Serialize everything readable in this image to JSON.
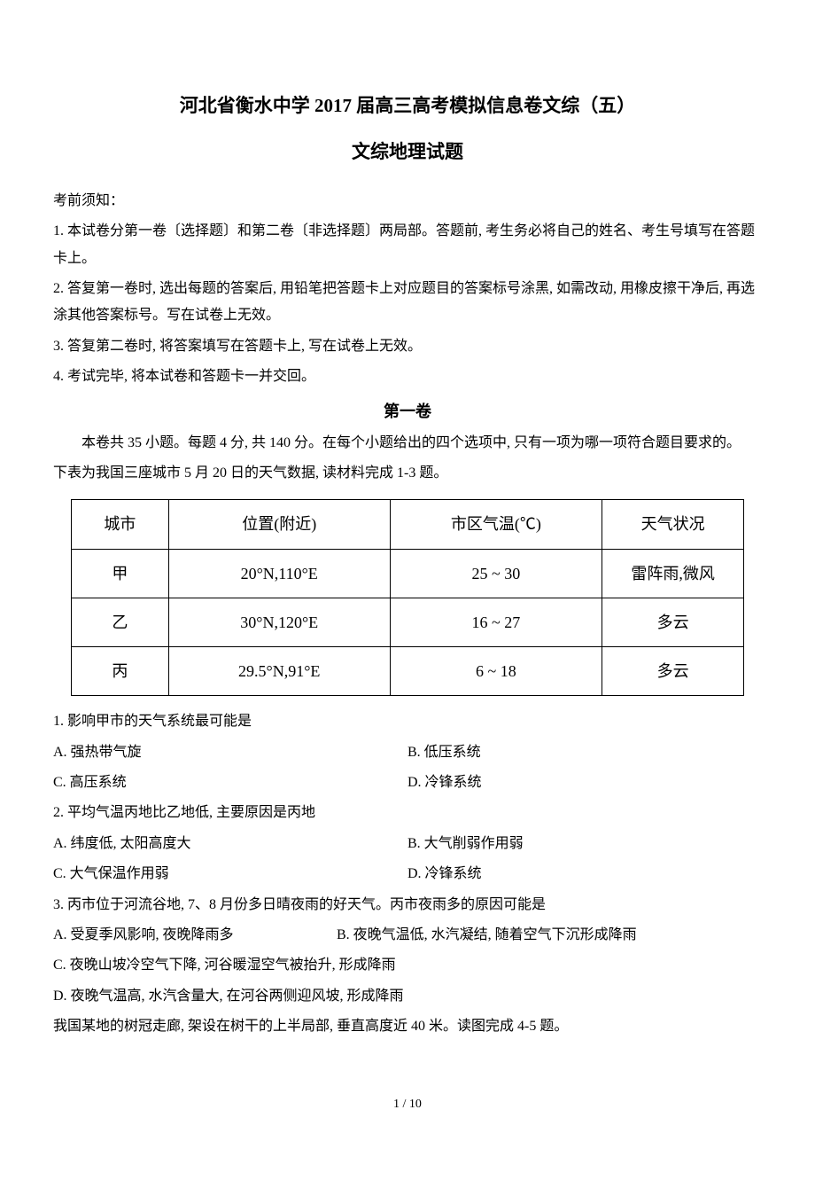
{
  "header": {
    "title_main": "河北省衡水中学 2017 届高三高考模拟信息卷文综（五）",
    "title_sub": "文综地理试题"
  },
  "instructions": {
    "pre_label": "考前须知：",
    "item1": "1. 本试卷分第一卷〔选择题〕和第二卷〔非选择题〕两局部。答题前, 考生务必将自己的姓名、考生号填写在答题卡上。",
    "item2": "2. 答复第一卷时, 选出每题的答案后, 用铅笔把答题卡上对应题目的答案标号涂黑, 如需改动, 用橡皮擦干净后, 再选涂其他答案标号。写在试卷上无效。",
    "item3": "3. 答复第二卷时, 将答案填写在答题卡上, 写在试卷上无效。",
    "item4": "4. 考试完毕, 将本试卷和答题卡一并交回。"
  },
  "section1": {
    "heading": "第一卷",
    "intro": "本卷共 35 小题。每题 4 分, 共 140 分。在每个小题给出的四个选项中, 只有一项为哪一项符合题目要求的。",
    "context1": "下表为我国三座城市 5 月 20 日的天气数据, 读材料完成 1-3 题。"
  },
  "table": {
    "headers": {
      "city": "城市",
      "location": "位置(附近)",
      "temperature": "市区气温(℃)",
      "weather": "天气状况"
    },
    "rows": [
      {
        "city": "甲",
        "location": "20°N,110°E",
        "temperature": "25 ~ 30",
        "weather": "雷阵雨,微风"
      },
      {
        "city": "乙",
        "location": "30°N,120°E",
        "temperature": "16 ~ 27",
        "weather": "多云"
      },
      {
        "city": "丙",
        "location": "29.5°N,91°E",
        "temperature": "6 ~ 18",
        "weather": "多云"
      }
    ],
    "col_widths": [
      "110px",
      "250px",
      "240px",
      "160px"
    ],
    "border_color": "#000000",
    "background_color": "#ffffff",
    "fontsize": 18
  },
  "questions": {
    "q1": {
      "stem": "1. 影响甲市的天气系统最可能是",
      "optA": "A. 强热带气旋",
      "optB": "B. 低压系统",
      "optC": "C. 高压系统",
      "optD": "D. 冷锋系统"
    },
    "q2": {
      "stem": "2. 平均气温丙地比乙地低, 主要原因是丙地",
      "optA": "A. 纬度低, 太阳高度大",
      "optB": "B. 大气削弱作用弱",
      "optC": "C. 大气保温作用弱",
      "optD": "D. 冷锋系统"
    },
    "q3": {
      "stem": "3. 丙市位于河流谷地, 7、8 月份多日晴夜雨的好天气。丙市夜雨多的原因可能是",
      "optA": "A. 受夏季风影响, 夜晚降雨多",
      "optB": "B. 夜晚气温低, 水汽凝结, 随着空气下沉形成降雨",
      "optC": "C. 夜晚山坡冷空气下降, 河谷暖湿空气被抬升, 形成降雨",
      "optD": "D. 夜晚气温高, 水汽含量大, 在河谷两侧迎风坡, 形成降雨"
    },
    "context2": "我国某地的树冠走廊, 架设在树干的上半局部, 垂直高度近 40 米。读图完成 4-5 题。"
  },
  "footer": {
    "page": "1 / 10"
  },
  "style": {
    "body_fontsize": 16,
    "title_fontsize": 21,
    "text_color": "#000000",
    "background_color": "#ffffff"
  }
}
